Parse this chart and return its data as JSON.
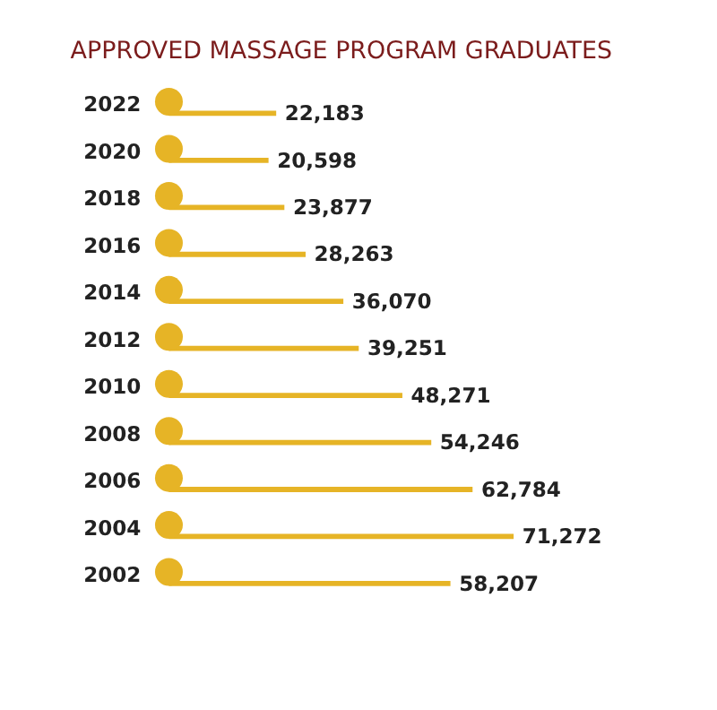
{
  "chart_data": {
    "type": "bar",
    "orientation": "horizontal",
    "title": "APPROVED MASSAGE PROGRAM GRADUATES",
    "categories": [
      "2022",
      "2020",
      "2018",
      "2016",
      "2014",
      "2012",
      "2010",
      "2008",
      "2006",
      "2004",
      "2002"
    ],
    "values": [
      22183,
      20598,
      23877,
      28263,
      36070,
      39251,
      48271,
      54246,
      62784,
      71272,
      58207
    ],
    "value_labels": [
      "22,183",
      "20,598",
      "23,877",
      "28,263",
      "36,070",
      "39,251",
      "48,271",
      "54,246",
      "62,784",
      "71,272",
      "58,207"
    ],
    "color": "#e6b426",
    "grid": false
  }
}
